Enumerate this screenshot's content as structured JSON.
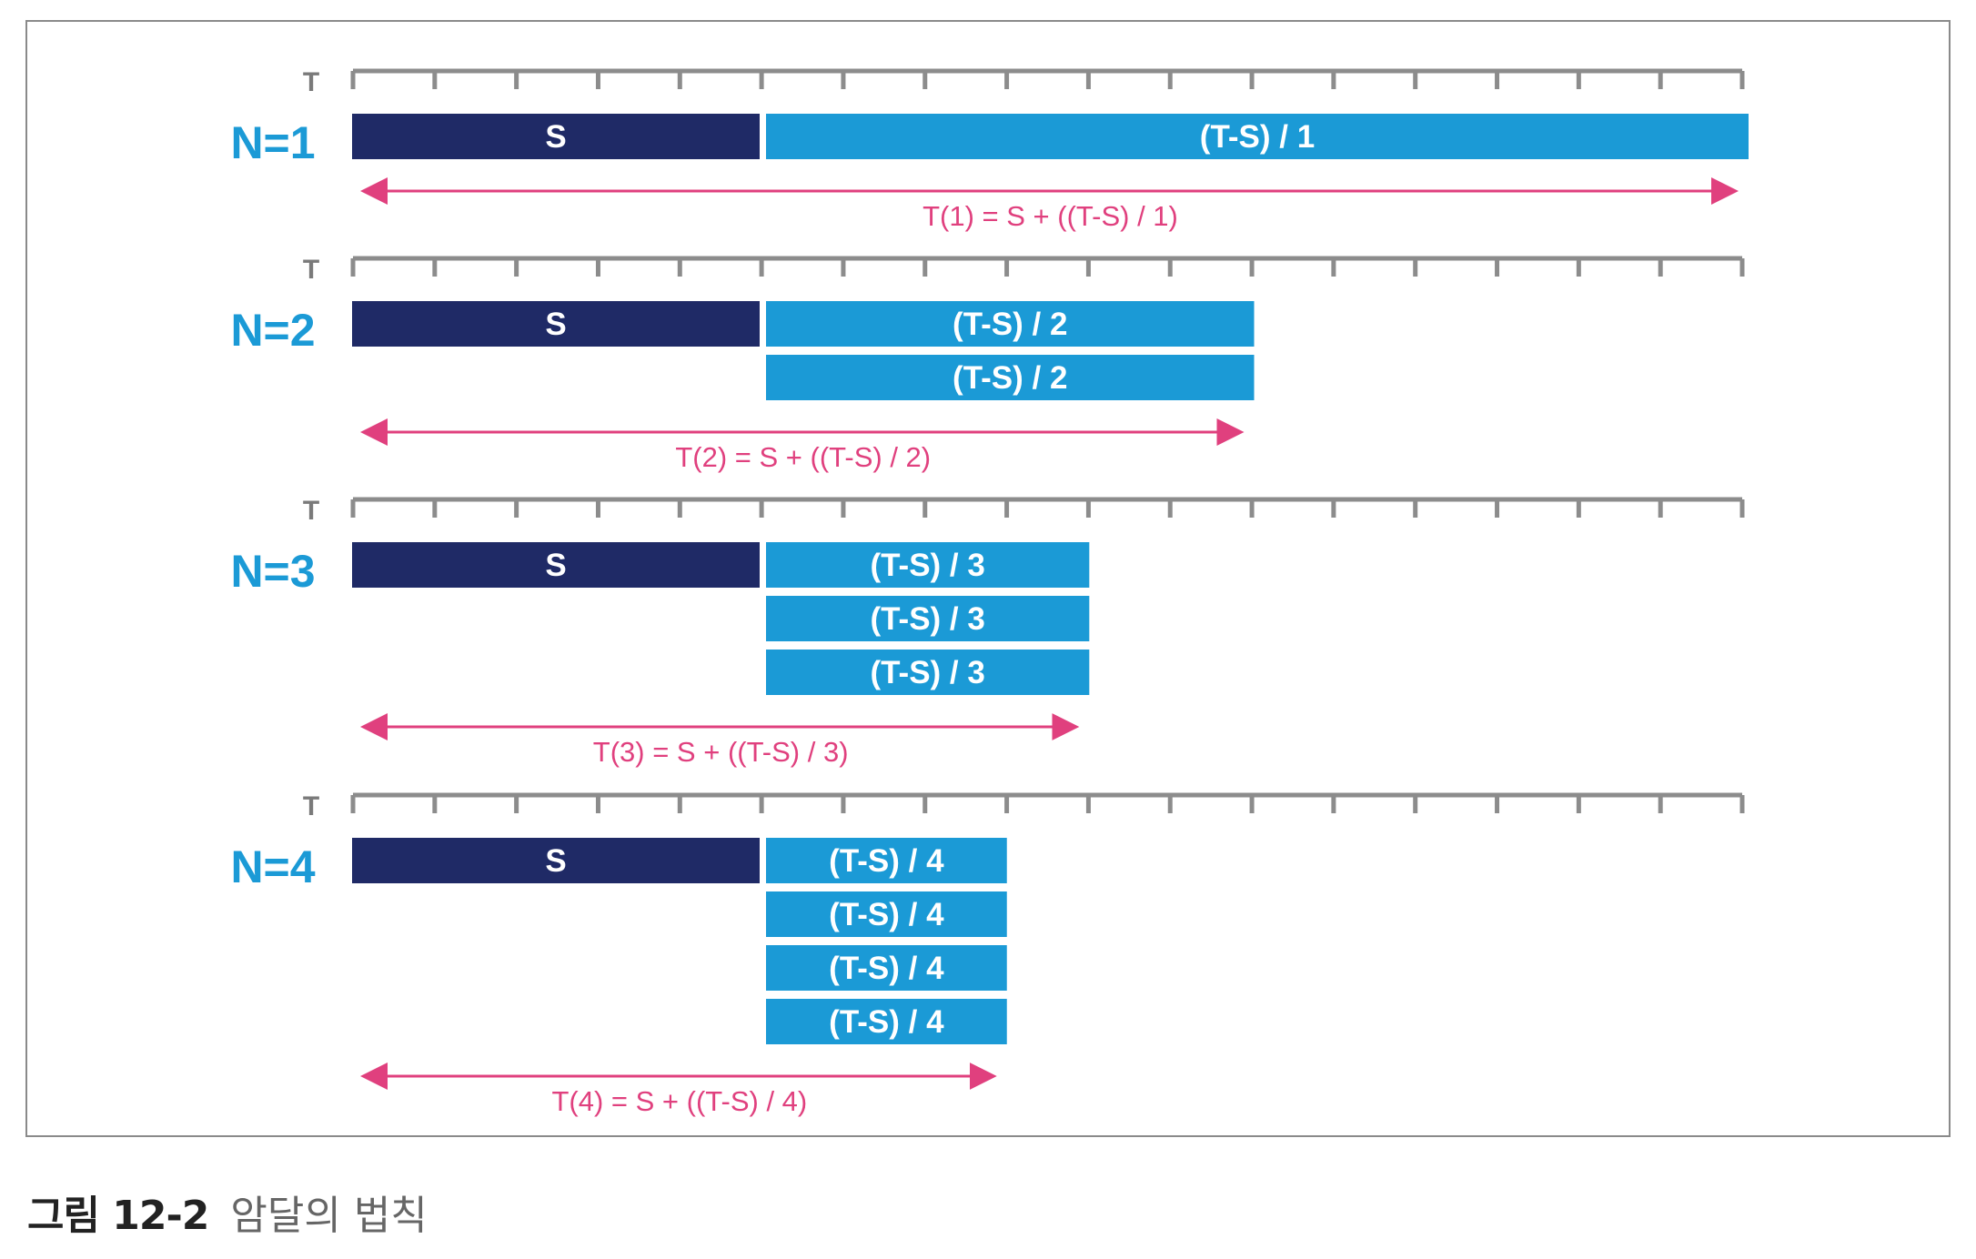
{
  "colors": {
    "serial": "#1f2a66",
    "parallel": "#1b9ad6",
    "label_n": "#1b9ad6",
    "arrow": "#e0407e",
    "ruler": "#8c8c8c"
  },
  "diagram": {
    "panels": [
      {
        "n_label": "N=1",
        "ruler_label": "T",
        "serial_label": "S",
        "parallel_label": "(T-S) / 1",
        "parallel_count": 1,
        "formula": "T(1) = S + ((T-S) / 1)"
      },
      {
        "n_label": "N=2",
        "ruler_label": "T",
        "serial_label": "S",
        "parallel_label": "(T-S) / 2",
        "parallel_count": 2,
        "formula": "T(2) = S + ((T-S) / 2)"
      },
      {
        "n_label": "N=3",
        "ruler_label": "T",
        "serial_label": "S",
        "parallel_label": "(T-S) / 3",
        "parallel_count": 3,
        "formula": "T(3) = S + ((T-S) / 3)"
      },
      {
        "n_label": "N=4",
        "ruler_label": "T",
        "serial_label": "S",
        "parallel_label": "(T-S) / 4",
        "parallel_count": 4,
        "formula": "T(4) = S + ((T-S) / 4)"
      }
    ]
  },
  "caption": {
    "figure_number": "그림 12-2",
    "title": "암달의 법칙"
  }
}
